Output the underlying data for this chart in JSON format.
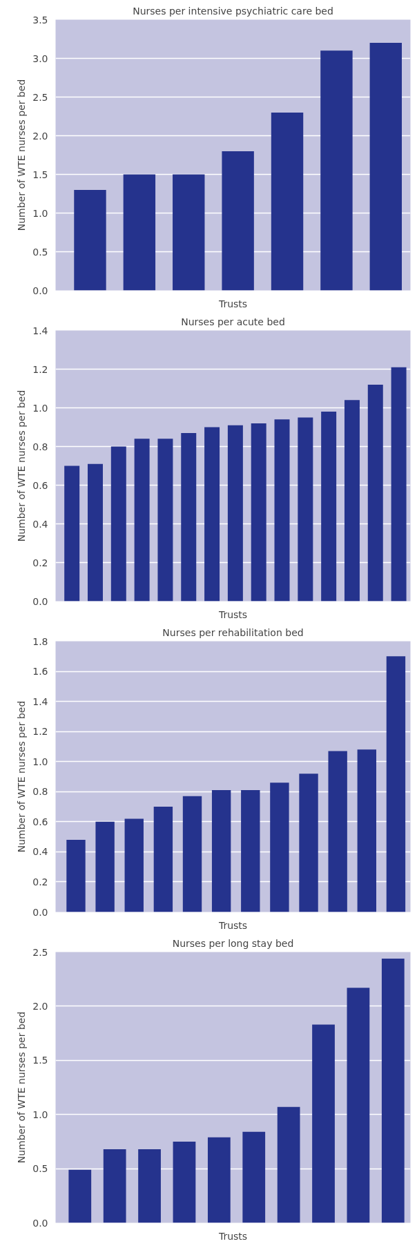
{
  "chart_data": [
    {
      "type": "bar",
      "title": "Nurses per intensive psychiatric care bed",
      "xlabel": "Trusts",
      "ylabel": "Number of WTE nurses per bed",
      "categories": [
        null,
        null,
        null,
        null,
        null,
        null,
        null
      ],
      "values": [
        1.3,
        1.5,
        1.5,
        1.8,
        2.3,
        3.1,
        3.2
      ],
      "color": "#25338d",
      "ylim": [
        0,
        3.5
      ],
      "yticks": [
        {
          "value": 0,
          "label": "0.0"
        },
        0.5,
        {
          "value": 1,
          "label": "1.0"
        },
        1.5,
        {
          "value": 2,
          "label": "2.0"
        },
        2.5,
        {
          "value": 3,
          "label": "3.0"
        },
        3.5
      ],
      "grid": "y",
      "legend": false
    },
    {
      "type": "bar",
      "title": "Nurses per acute bed",
      "xlabel": "Trusts",
      "ylabel": "Number of WTE nurses per bed",
      "categories": [
        null,
        null,
        null,
        null,
        null,
        null,
        null,
        null,
        null,
        null,
        null,
        null,
        null,
        null,
        null
      ],
      "values": [
        0.7,
        0.71,
        0.8,
        0.84,
        0.84,
        0.87,
        0.9,
        0.91,
        0.92,
        0.94,
        0.95,
        0.98,
        1.04,
        1.12,
        1.21
      ],
      "color": "#25338d",
      "ylim": [
        0,
        1.4
      ],
      "yticks": [
        {
          "value": 0,
          "label": "0.0"
        },
        0.2,
        0.4,
        0.6,
        0.8,
        {
          "value": 1,
          "label": "1.0"
        },
        1.2,
        1.4
      ],
      "grid": "y",
      "legend": false
    },
    {
      "type": "bar",
      "title": "Nurses per rehabilitation bed",
      "xlabel": "Trusts",
      "ylabel": "Number of WTE nurses per bed",
      "categories": [
        null,
        null,
        null,
        null,
        null,
        null,
        null,
        null,
        null,
        null,
        null,
        null
      ],
      "values": [
        0.48,
        0.6,
        0.62,
        0.7,
        0.77,
        0.81,
        0.81,
        0.86,
        0.92,
        1.07,
        1.08,
        1.7
      ],
      "color": "#25338d",
      "ylim": [
        0,
        1.8
      ],
      "yticks": [
        {
          "value": 0,
          "label": "0.0"
        },
        0.2,
        0.4,
        0.6,
        0.8,
        {
          "value": 1,
          "label": "1.0"
        },
        1.2,
        1.4,
        1.6,
        1.8
      ],
      "grid": "y",
      "legend": false
    },
    {
      "type": "bar",
      "title": "Nurses per long stay bed",
      "xlabel": "Trusts",
      "ylabel": "Number of WTE nurses per bed",
      "categories": [
        null,
        null,
        null,
        null,
        null,
        null,
        null,
        null,
        null,
        null
      ],
      "values": [
        0.49,
        0.68,
        0.68,
        0.75,
        0.79,
        0.84,
        1.07,
        1.83,
        2.17,
        2.44
      ],
      "color": "#25338d",
      "ylim": [
        0,
        2.5
      ],
      "yticks": [
        {
          "value": 0,
          "label": "0.0"
        },
        0.5,
        {
          "value": 1,
          "label": "1.0"
        },
        1.5,
        {
          "value": 2,
          "label": "2.0"
        },
        2.5
      ],
      "grid": "y",
      "legend": false
    }
  ]
}
